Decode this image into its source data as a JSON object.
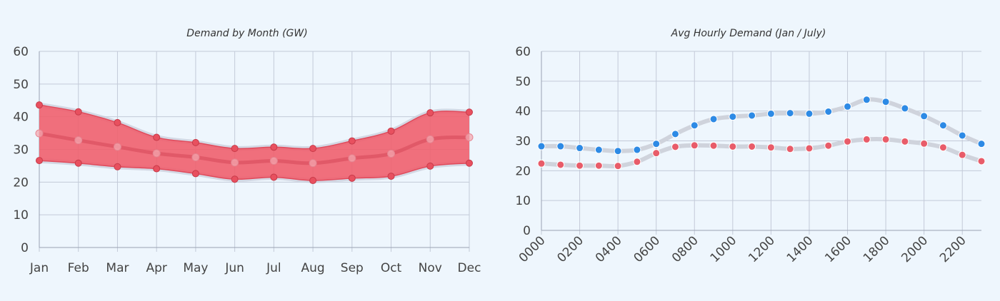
{
  "chart_data": [
    {
      "type": "area",
      "title": "Demand by Month (GW)",
      "xlabel": "",
      "ylabel": "",
      "categories": [
        "Jan",
        "Feb",
        "Mar",
        "Apr",
        "May",
        "Jun",
        "Jul",
        "Aug",
        "Sep",
        "Oct",
        "Nov",
        "Dec"
      ],
      "ylim": [
        0,
        60
      ],
      "yticks": [
        0,
        10,
        20,
        30,
        40,
        50,
        60
      ],
      "series": [
        {
          "values": [
            43.6,
            41.5,
            38.2,
            33.7,
            32.1,
            30.3,
            30.7,
            30.3,
            32.6,
            35.6,
            41.2,
            41.4
          ]
        },
        {
          "values": [
            34.9,
            32.8,
            30.8,
            28.8,
            27.6,
            26.0,
            26.5,
            25.8,
            27.3,
            28.7,
            33.1,
            33.7
          ]
        },
        {
          "values": [
            26.6,
            25.8,
            24.7,
            24.1,
            22.6,
            20.9,
            21.5,
            20.5,
            21.2,
            21.8,
            24.9,
            25.8
          ]
        }
      ],
      "colors": {
        "band": "#f0606e",
        "line": "#e04a5b",
        "median": "#d64757",
        "halo": "#c8ccd8"
      },
      "grid": true
    },
    {
      "type": "line",
      "title": "Avg Hourly Demand (Jan / July)",
      "xlabel": "",
      "ylabel": "",
      "categories": [
        "0000",
        "0100",
        "0200",
        "0300",
        "0400",
        "0500",
        "0600",
        "0700",
        "0800",
        "0900",
        "1000",
        "1100",
        "1200",
        "1300",
        "1400",
        "1500",
        "1600",
        "1700",
        "1800",
        "1900",
        "2000",
        "2100",
        "2200",
        "2300"
      ],
      "tick_labels": [
        "0000",
        "0200",
        "0400",
        "0600",
        "0800",
        "1000",
        "1200",
        "1400",
        "1600",
        "1800",
        "2000",
        "2200"
      ],
      "ylim": [
        0,
        60
      ],
      "yticks": [
        0,
        10,
        20,
        30,
        40,
        50,
        60
      ],
      "series": [
        {
          "values": [
            28.2,
            28.2,
            27.6,
            27.0,
            26.6,
            27.0,
            29.0,
            32.3,
            35.2,
            37.3,
            38.1,
            38.5,
            39.1,
            39.3,
            39.1,
            39.8,
            41.5,
            43.8,
            43.1,
            40.9,
            38.3,
            35.2,
            31.8,
            29.0
          ],
          "color": "#2d8ae5"
        },
        {
          "values": [
            22.4,
            22.0,
            21.7,
            21.7,
            21.6,
            23.0,
            25.9,
            28.0,
            28.5,
            28.4,
            28.1,
            28.1,
            27.8,
            27.3,
            27.5,
            28.4,
            29.8,
            30.5,
            30.5,
            29.8,
            29.1,
            27.8,
            25.3,
            23.2
          ],
          "color": "#e85c69"
        }
      ],
      "colors": {
        "halo": "#cfd3dc"
      },
      "grid": true
    }
  ]
}
